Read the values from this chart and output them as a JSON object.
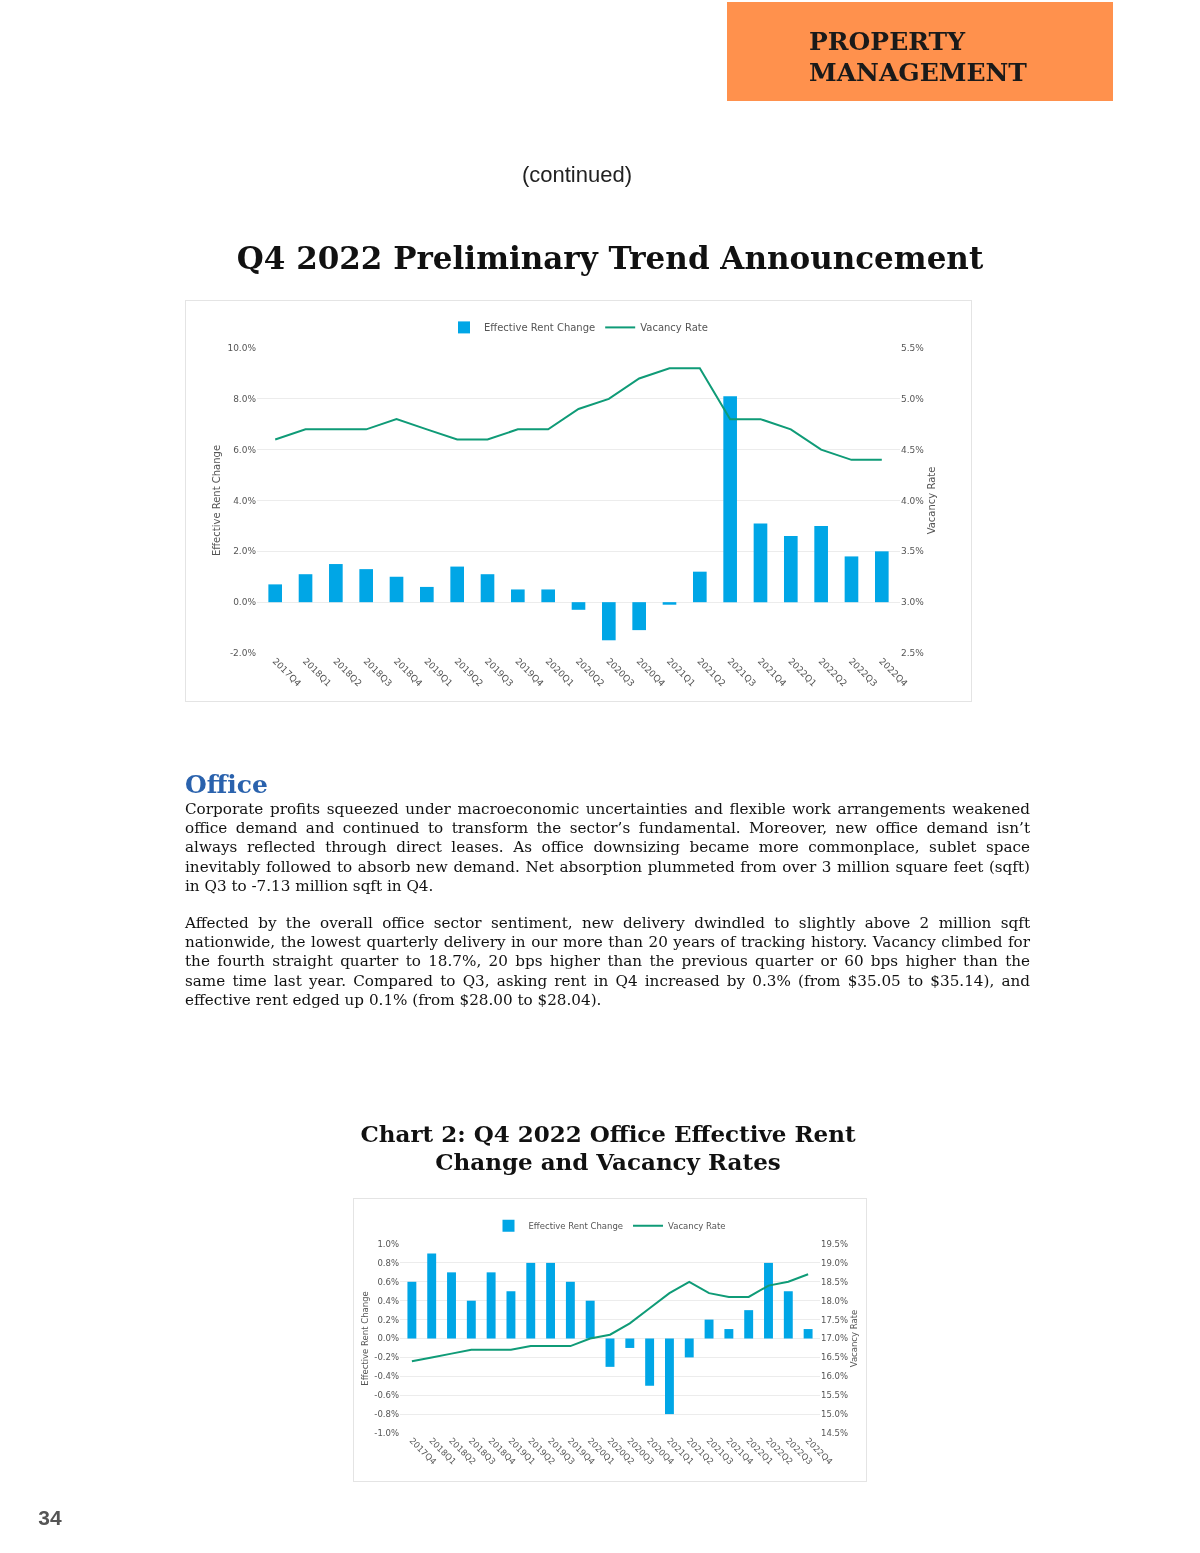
{
  "chart_data": [
    {
      "type": "bar",
      "title": "Q4 2022 Preliminary Trend Announcement",
      "ylabel": "Effective Rent Change",
      "y2label": "Vacancy Rate",
      "annotations": [
        "PROPERTY MANAGEMENT",
        "(continued)"
      ],
      "categories": [
        "2017Q4",
        "2018Q1",
        "2018Q2",
        "2018Q3",
        "2018Q4",
        "2019Q1",
        "2019Q2",
        "2019Q3",
        "2019Q4",
        "2020Q1",
        "2020Q2",
        "2020Q3",
        "2020Q4",
        "2021Q1",
        "2021Q2",
        "2021Q3",
        "2021Q4",
        "2022Q1",
        "2022Q2",
        "2022Q3",
        "2022Q4"
      ],
      "series": [
        {
          "name": "Effective Rent Change",
          "type": "bar",
          "color": "#00a6e6",
          "values": [
            0.7,
            1.1,
            1.5,
            1.3,
            1.0,
            0.6,
            1.4,
            1.1,
            0.5,
            0.5,
            -0.3,
            -1.5,
            -1.1,
            -0.1,
            1.2,
            8.1,
            3.1,
            2.6,
            3.0,
            1.8,
            2.0
          ]
        },
        {
          "name": "Vacancy Rate",
          "type": "line",
          "axis": "y2",
          "color": "#0f9b77",
          "values": [
            4.6,
            4.7,
            4.7,
            4.7,
            4.8,
            4.7,
            4.6,
            4.6,
            4.7,
            4.7,
            4.9,
            5.0,
            5.2,
            5.3,
            5.3,
            4.8,
            4.8,
            4.7,
            4.5,
            4.4,
            4.4
          ]
        }
      ],
      "ylim": [
        -2,
        10
      ],
      "yticks": [
        {
          "value": -2,
          "label": "-2.0%"
        },
        {
          "value": 0,
          "label": "0.0%"
        },
        {
          "value": 2,
          "label": "2.0%"
        },
        {
          "value": 4,
          "label": "4.0%"
        },
        {
          "value": 6,
          "label": "6.0%"
        },
        {
          "value": 8,
          "label": "8.0%"
        },
        {
          "value": 10,
          "label": "10.0%"
        }
      ],
      "y2lim": [
        2.5,
        5.5
      ],
      "y2ticks": [
        {
          "value": 2.5,
          "label": "2.5%"
        },
        {
          "value": 3,
          "label": "3.0%"
        },
        {
          "value": 3.5,
          "label": "3.5%"
        },
        {
          "value": 4,
          "label": "4.0%"
        },
        {
          "value": 4.5,
          "label": "4.5%"
        },
        {
          "value": 5,
          "label": "5.0%"
        },
        {
          "value": 5.5,
          "label": "5.5%"
        }
      ],
      "grid": "y",
      "legend": "top"
    },
    {
      "type": "other",
      "title": "Office",
      "annotations": [
        "Corporate profits squeezed under macroeconomic uncertainties and flexible work arrangements weakened office demand and continued to transform the sector’s fundamental. Moreover, new office demand isn’t always reflected through direct leases. As office downsizing became more commonplace, sublet space inevitably followed to absorb new demand. Net absorption plummeted from over 3 million square feet (sqft) in Q3 to -7.13 million sqft in Q4.",
        "Affected by the overall office sector sentiment, new delivery dwindled to slightly above 2 million sqft nationwide, the lowest quarterly delivery in our more than 20 years of tracking history. Vacancy climbed for the fourth straight quarter to 18.7%, 20 bps higher than the previous quarter or 60 bps higher than the same time last year. Compared to Q3, asking rent in Q4 increased by 0.3% (from $35.05 to $35.14), and effective rent edged up 0.1% (from $28.00 to $28.04)."
      ]
    },
    {
      "type": "bar",
      "title": "Chart 2: Q4 2022 Office Effective Rent\nChange and Vacancy Rates",
      "ylabel": "Effective Rent Change",
      "y2label": "Vacancy Rate",
      "annotations": [
        "34"
      ],
      "categories": [
        "2017Q4",
        "2018Q1",
        "2018Q2",
        "2018Q3",
        "2018Q4",
        "2019Q1",
        "2019Q2",
        "2019Q3",
        "2019Q4",
        "2020Q1",
        "2020Q2",
        "2020Q3",
        "2020Q4",
        "2021Q1",
        "2021Q2",
        "2021Q3",
        "2021Q4",
        "2022Q1",
        "2022Q2",
        "2022Q3",
        "2022Q4"
      ],
      "series": [
        {
          "name": "Effective Rent Change",
          "type": "bar",
          "color": "#00a6e6",
          "values": [
            0.6,
            0.9,
            0.7,
            0.4,
            0.7,
            0.5,
            0.8,
            0.8,
            0.6,
            0.4,
            -0.3,
            -0.1,
            -0.5,
            -0.8,
            -0.2,
            0.2,
            0.1,
            0.3,
            0.8,
            0.5,
            0.1
          ]
        },
        {
          "name": "Vacancy Rate",
          "type": "line",
          "axis": "y2",
          "color": "#0f9b77",
          "values": [
            16.4,
            16.5,
            16.6,
            16.7,
            16.7,
            16.7,
            16.8,
            16.8,
            16.8,
            17.0,
            17.1,
            17.4,
            17.8,
            18.2,
            18.5,
            18.2,
            18.1,
            18.1,
            18.4,
            18.5,
            18.7
          ]
        }
      ],
      "ylim": [
        -1,
        1
      ],
      "yticks": [
        {
          "value": -1,
          "label": "-1.0%"
        },
        {
          "value": -0.8,
          "label": "-0.8%"
        },
        {
          "value": -0.6,
          "label": "-0.6%"
        },
        {
          "value": -0.4,
          "label": "-0.4%"
        },
        {
          "value": -0.2,
          "label": "-0.2%"
        },
        {
          "value": 0,
          "label": "0.0%"
        },
        {
          "value": 0.2,
          "label": "0.2%"
        },
        {
          "value": 0.4,
          "label": "0.4%"
        },
        {
          "value": 0.6,
          "label": "0.6%"
        },
        {
          "value": 0.8,
          "label": "0.8%"
        },
        {
          "value": 1,
          "label": "1.0%"
        }
      ],
      "y2lim": [
        14.5,
        19.5
      ],
      "y2ticks": [
        {
          "value": 14.5,
          "label": "14.5%"
        },
        {
          "value": 15,
          "label": "15.0%"
        },
        {
          "value": 15.5,
          "label": "15.5%"
        },
        {
          "value": 16,
          "label": "16.0%"
        },
        {
          "value": 16.5,
          "label": "16.5%"
        },
        {
          "value": 17,
          "label": "17.0%"
        },
        {
          "value": 17.5,
          "label": "17.5%"
        },
        {
          "value": 18,
          "label": "18.0%"
        },
        {
          "value": 18.5,
          "label": "18.5%"
        },
        {
          "value": 19,
          "label": "19.0%"
        },
        {
          "value": 19.5,
          "label": "19.5%"
        }
      ],
      "grid": "y",
      "legend": "top"
    }
  ]
}
